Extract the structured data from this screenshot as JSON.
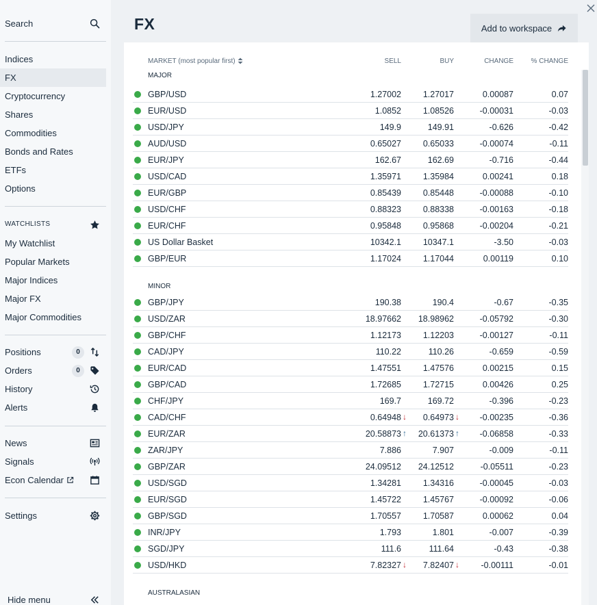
{
  "page": {
    "title": "FX"
  },
  "header": {
    "add_workspace_label": "Add to workspace"
  },
  "sidebar": {
    "search_label": "Search",
    "markets": [
      "Indices",
      "FX",
      "Cryptocurrency",
      "Shares",
      "Commodities",
      "Bonds and Rates",
      "ETFs",
      "Options"
    ],
    "active_market": "FX",
    "watchlists_title": "WATCHLISTS",
    "watchlists": [
      "My Watchlist",
      "Popular Markets",
      "Major Indices",
      "Major FX",
      "Major Commodities"
    ],
    "positions_label": "Positions",
    "positions_count": "0",
    "orders_label": "Orders",
    "orders_count": "0",
    "history_label": "History",
    "alerts_label": "Alerts",
    "news_label": "News",
    "signals_label": "Signals",
    "econ_calendar_label": "Econ Calendar",
    "settings_label": "Settings",
    "hide_menu_label": "Hide menu"
  },
  "table": {
    "headers": {
      "market": "MARKET (most popular first)",
      "sell": "SELL",
      "buy": "BUY",
      "change": "CHANGE",
      "pct_change": "% CHANGE"
    },
    "groups": [
      {
        "label": "MAJOR",
        "rows": [
          {
            "market": "GBP/USD",
            "sell": "1.27002",
            "buy": "1.27017",
            "change": "0.00087",
            "pct": "0.07"
          },
          {
            "market": "EUR/USD",
            "sell": "1.0852",
            "buy": "1.08526",
            "change": "-0.00031",
            "pct": "-0.03"
          },
          {
            "market": "USD/JPY",
            "sell": "149.9",
            "buy": "149.91",
            "change": "-0.626",
            "pct": "-0.42"
          },
          {
            "market": "AUD/USD",
            "sell": "0.65027",
            "buy": "0.65033",
            "change": "-0.00074",
            "pct": "-0.11"
          },
          {
            "market": "EUR/JPY",
            "sell": "162.67",
            "buy": "162.69",
            "change": "-0.716",
            "pct": "-0.44"
          },
          {
            "market": "USD/CAD",
            "sell": "1.35971",
            "buy": "1.35984",
            "change": "0.00241",
            "pct": "0.18"
          },
          {
            "market": "EUR/GBP",
            "sell": "0.85439",
            "buy": "0.85448",
            "change": "-0.00088",
            "pct": "-0.10"
          },
          {
            "market": "USD/CHF",
            "sell": "0.88323",
            "buy": "0.88338",
            "change": "-0.00163",
            "pct": "-0.18"
          },
          {
            "market": "EUR/CHF",
            "sell": "0.95848",
            "buy": "0.95868",
            "change": "-0.00204",
            "pct": "-0.21"
          },
          {
            "market": "US Dollar Basket",
            "sell": "10342.1",
            "buy": "10347.1",
            "change": "-3.50",
            "pct": "-0.03"
          },
          {
            "market": "GBP/EUR",
            "sell": "1.17024",
            "buy": "1.17044",
            "change": "0.00119",
            "pct": "0.10"
          }
        ]
      },
      {
        "label": "MINOR",
        "rows": [
          {
            "market": "GBP/JPY",
            "sell": "190.38",
            "buy": "190.4",
            "change": "-0.67",
            "pct": "-0.35"
          },
          {
            "market": "USD/ZAR",
            "sell": "18.97662",
            "buy": "18.98962",
            "change": "-0.05792",
            "pct": "-0.30"
          },
          {
            "market": "GBP/CHF",
            "sell": "1.12173",
            "buy": "1.12203",
            "change": "-0.00127",
            "pct": "-0.11"
          },
          {
            "market": "CAD/JPY",
            "sell": "110.22",
            "buy": "110.26",
            "change": "-0.659",
            "pct": "-0.59"
          },
          {
            "market": "EUR/CAD",
            "sell": "1.47551",
            "buy": "1.47576",
            "change": "0.00215",
            "pct": "0.15"
          },
          {
            "market": "GBP/CAD",
            "sell": "1.72685",
            "buy": "1.72715",
            "change": "0.00426",
            "pct": "0.25"
          },
          {
            "market": "CHF/JPY",
            "sell": "169.7",
            "buy": "169.72",
            "change": "-0.396",
            "pct": "-0.23"
          },
          {
            "market": "CAD/CHF",
            "sell": "0.64948",
            "buy": "0.64973",
            "change": "-0.00235",
            "pct": "-0.36",
            "tick": "down"
          },
          {
            "market": "EUR/ZAR",
            "sell": "20.58873",
            "buy": "20.61373",
            "change": "-0.06858",
            "pct": "-0.33",
            "tick": "up"
          },
          {
            "market": "ZAR/JPY",
            "sell": "7.886",
            "buy": "7.907",
            "change": "-0.009",
            "pct": "-0.11"
          },
          {
            "market": "GBP/ZAR",
            "sell": "24.09512",
            "buy": "24.12512",
            "change": "-0.05511",
            "pct": "-0.23"
          },
          {
            "market": "USD/SGD",
            "sell": "1.34281",
            "buy": "1.34316",
            "change": "-0.00045",
            "pct": "-0.03"
          },
          {
            "market": "EUR/SGD",
            "sell": "1.45722",
            "buy": "1.45767",
            "change": "-0.00092",
            "pct": "-0.06"
          },
          {
            "market": "GBP/SGD",
            "sell": "1.70557",
            "buy": "1.70587",
            "change": "0.00062",
            "pct": "0.04"
          },
          {
            "market": "INR/JPY",
            "sell": "1.793",
            "buy": "1.801",
            "change": "-0.007",
            "pct": "-0.39"
          },
          {
            "market": "SGD/JPY",
            "sell": "111.6",
            "buy": "111.64",
            "change": "-0.43",
            "pct": "-0.38"
          },
          {
            "market": "USD/HKD",
            "sell": "7.82327",
            "buy": "7.82407",
            "change": "-0.00111",
            "pct": "-0.01",
            "tick": "down"
          }
        ]
      },
      {
        "label": "AUSTRALASIAN",
        "rows": []
      }
    ]
  },
  "colors": {
    "positive": "#2f6a93",
    "negative": "#c0262d",
    "live_dot": "#3aaa49"
  }
}
